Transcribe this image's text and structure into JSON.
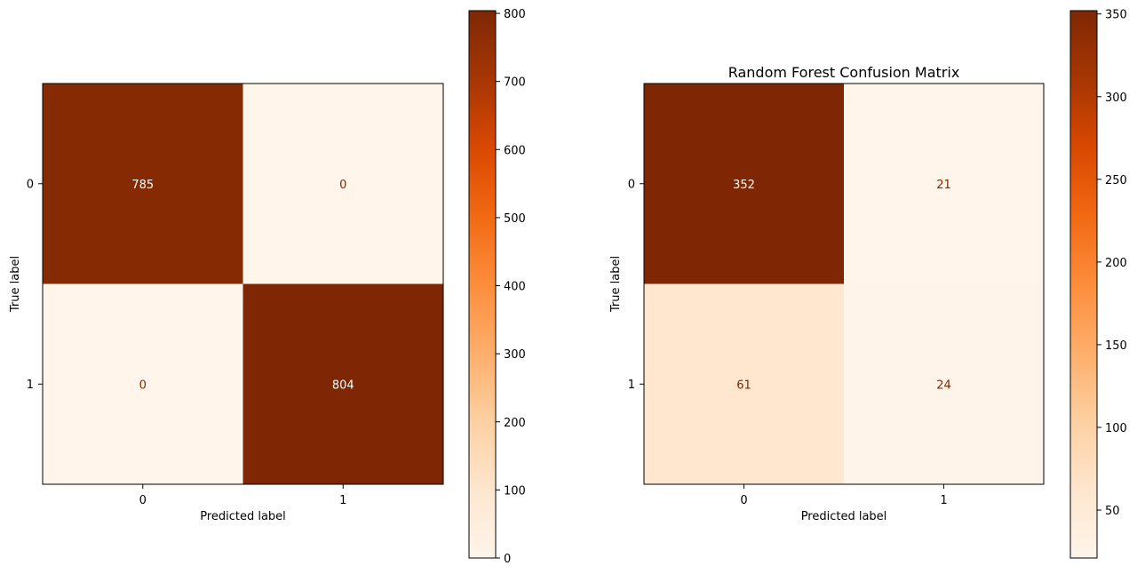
{
  "chart_data": [
    {
      "type": "heatmap",
      "title": "",
      "xlabel": "Predicted label",
      "ylabel": "True label",
      "x_ticks": [
        "0",
        "1"
      ],
      "y_ticks": [
        "0",
        "1"
      ],
      "matrix": [
        [
          785,
          0
        ],
        [
          0,
          804
        ]
      ],
      "colormap": "Oranges",
      "colorbar": {
        "range": [
          0,
          804
        ],
        "ticks": [
          0,
          100,
          200,
          300,
          400,
          500,
          600,
          700,
          800
        ],
        "tick_labels": [
          "0",
          "100",
          "200",
          "300",
          "400",
          "500",
          "600",
          "700",
          "800"
        ]
      }
    },
    {
      "type": "heatmap",
      "title": "Random Forest Confusion Matrix",
      "xlabel": "Predicted label",
      "ylabel": "True label",
      "x_ticks": [
        "0",
        "1"
      ],
      "y_ticks": [
        "0",
        "1"
      ],
      "matrix": [
        [
          352,
          21
        ],
        [
          61,
          24
        ]
      ],
      "colormap": "Oranges",
      "colorbar": {
        "range": [
          21,
          352
        ],
        "ticks": [
          50,
          100,
          150,
          200,
          250,
          300,
          350
        ],
        "tick_labels": [
          "50",
          "100",
          "150",
          "200",
          "250",
          "300",
          "350"
        ]
      }
    }
  ],
  "colors": {
    "low": "#fff5eb",
    "high": "#7f2704",
    "dark_text": "#7f2704",
    "light_text": "#ffffff"
  }
}
